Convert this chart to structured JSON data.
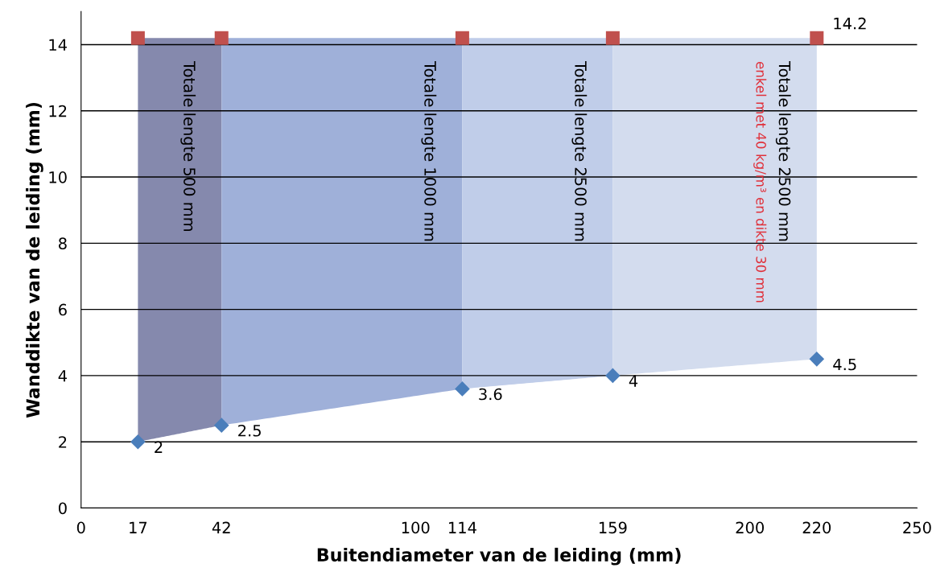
{
  "chart_data": {
    "type": "scatter",
    "xlabel": "Buitendiameter van de leiding (mm)",
    "ylabel": "Wanddikte van de leiding (mm)",
    "xlim": [
      0,
      250
    ],
    "xticks": [
      0,
      17,
      42,
      100,
      114,
      159,
      200,
      220,
      250
    ],
    "ylim": [
      0,
      15
    ],
    "yticks": [
      0,
      2,
      4,
      6,
      8,
      10,
      12,
      14
    ],
    "grid": "y",
    "series": [
      {
        "marker": "diamond",
        "x": [
          17,
          42,
          114,
          159,
          220
        ],
        "values": [
          2,
          2.5,
          3.6,
          4,
          4.5
        ],
        "color": "#4a7ebb",
        "value_labels": [
          "2",
          "2.5",
          "3.6",
          "4",
          "4.5"
        ]
      },
      {
        "marker": "square",
        "x": [
          17,
          42,
          114,
          159,
          220
        ],
        "values": [
          14.2,
          14.2,
          14.2,
          14.2,
          14.2
        ],
        "color": "#c0504d",
        "value_labels": [
          null,
          null,
          null,
          null,
          "14.2"
        ]
      }
    ],
    "bands": [
      {
        "axis": "x",
        "from": 17,
        "to": 42,
        "color": "#8589ad"
      },
      {
        "axis": "x",
        "from": 42,
        "to": 114,
        "color": "#9fb0d9"
      },
      {
        "axis": "x",
        "from": 114,
        "to": 159,
        "color": "#c0cde9"
      },
      {
        "axis": "x",
        "from": 159,
        "to": 220,
        "color": "#d3dcee"
      }
    ],
    "annotations": [
      "Totale lengte 500 mm",
      "Totale lengte 1000 mm",
      "Totale lengte 2500 mm",
      "Totale lengte 2500 mm",
      "enkel met 40 kg/m³ en dikte 30 mm"
    ]
  }
}
